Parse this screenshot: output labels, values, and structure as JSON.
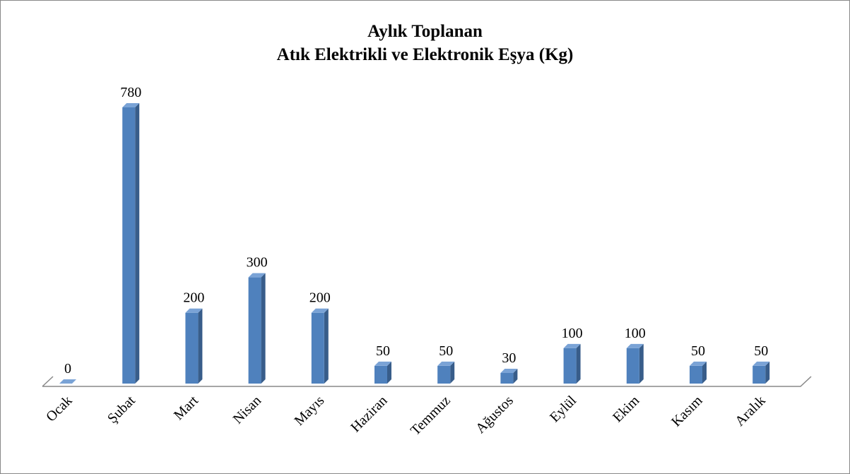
{
  "chart_data": {
    "type": "bar",
    "title": "Aylık Toplanan\nAtık Elektrikli ve Elektronik Eşya (Kg)",
    "categories": [
      "Ocak",
      "Şubat",
      "Mart",
      "Nisan",
      "Mayıs",
      "Haziran",
      "Temmuz",
      "Ağustos",
      "Eylül",
      "Ekim",
      "Kasım",
      "Aralık"
    ],
    "values": [
      0,
      780,
      200,
      300,
      200,
      50,
      50,
      30,
      100,
      100,
      50,
      50
    ],
    "color": "#4f81bd"
  }
}
